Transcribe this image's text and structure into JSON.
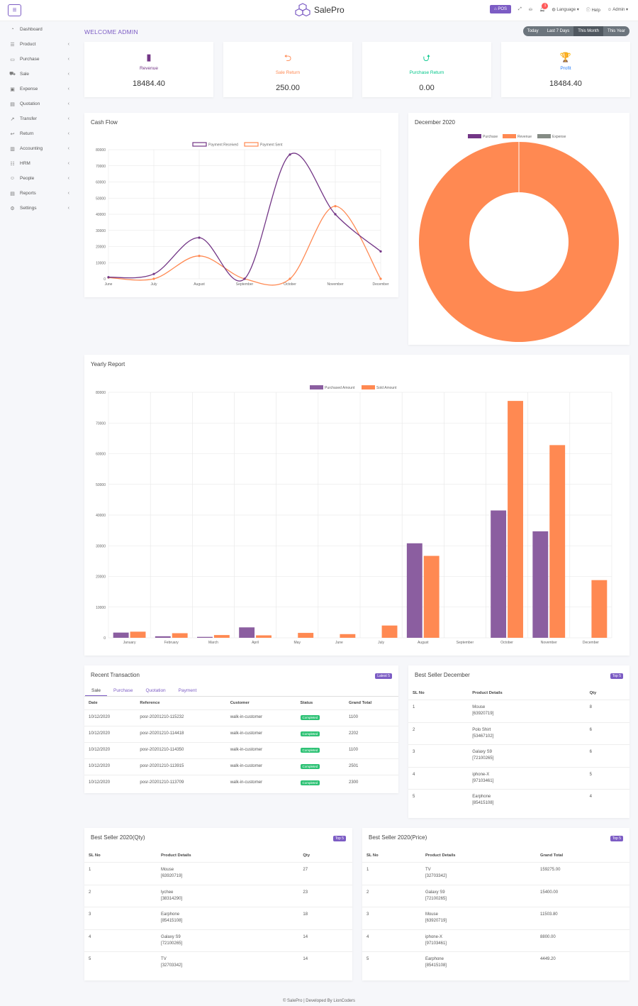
{
  "header": {
    "menu_icon": "bars-icon",
    "brand": "SalePro",
    "pos": "POS",
    "notif_count": "1",
    "language": "Language",
    "help": "Help",
    "user": "Admin"
  },
  "sidebar": {
    "items": [
      {
        "label": "Dashboard",
        "icon": "dashboard-icon",
        "glyph": "◔",
        "chev": false
      },
      {
        "label": "Product",
        "icon": "list-icon",
        "glyph": "☰",
        "chev": true
      },
      {
        "label": "Purchase",
        "icon": "card-icon",
        "glyph": "▭",
        "chev": true
      },
      {
        "label": "Sale",
        "icon": "cart-icon",
        "glyph": "⛟",
        "chev": true
      },
      {
        "label": "Expense",
        "icon": "wallet-icon",
        "glyph": "▣",
        "chev": true
      },
      {
        "label": "Quotation",
        "icon": "document-icon",
        "glyph": "▤",
        "chev": true
      },
      {
        "label": "Transfer",
        "icon": "share-icon",
        "glyph": "↗",
        "chev": true
      },
      {
        "label": "Return",
        "icon": "return-icon",
        "glyph": "↩",
        "chev": true
      },
      {
        "label": "Accounting",
        "icon": "briefcase-icon",
        "glyph": "▥",
        "chev": true
      },
      {
        "label": "HRM",
        "icon": "users-icon",
        "glyph": "☷",
        "chev": true
      },
      {
        "label": "People",
        "icon": "user-icon",
        "glyph": "☺",
        "chev": true
      },
      {
        "label": "Reports",
        "icon": "report-icon",
        "glyph": "▤",
        "chev": true
      },
      {
        "label": "Settings",
        "icon": "gear-icon",
        "glyph": "⚙",
        "chev": true
      }
    ]
  },
  "welcome": "WELCOME ADMIN",
  "filters": [
    "Today",
    "Last 7 Days",
    "This Month",
    "This Year"
  ],
  "stats": [
    {
      "label": "Revenue",
      "value": "18484.40",
      "color": "#733686",
      "icon": "bar-chart-icon",
      "glyph": "▮"
    },
    {
      "label": "Sale Return",
      "value": "250.00",
      "color": "#ff8952",
      "icon": "return-icon",
      "glyph": "⮌"
    },
    {
      "label": "Purchase Return",
      "value": "0.00",
      "color": "#00c689",
      "icon": "share-icon",
      "glyph": "⮍"
    },
    {
      "label": "Profit",
      "value": "18484.40",
      "color": "#297ff9",
      "icon": "trophy-icon",
      "glyph": "🏆"
    }
  ],
  "cashflow": {
    "title": "Cash Flow"
  },
  "monthchart": {
    "title": "December 2020"
  },
  "yearly": {
    "title": "Yearly Report"
  },
  "chart_data": [
    {
      "type": "line",
      "title": "Cash Flow",
      "x": [
        "June",
        "July",
        "August",
        "September",
        "October",
        "November",
        "December"
      ],
      "series": [
        {
          "name": "Payment Received",
          "color": "#733686",
          "values": [
            1000,
            3000,
            25500,
            0,
            77000,
            40000,
            17000
          ]
        },
        {
          "name": "Payment Sent",
          "color": "#ff8952",
          "values": [
            800,
            0,
            14200,
            0,
            0,
            45000,
            0
          ]
        }
      ],
      "ylim": [
        0,
        80000
      ],
      "yticks": [
        0,
        10000,
        20000,
        30000,
        40000,
        50000,
        60000,
        70000,
        80000
      ],
      "legend": "top",
      "grid": true
    },
    {
      "type": "pie",
      "title": "December 2020",
      "series": [
        {
          "name": "Purchase",
          "color": "#733686",
          "value": 0
        },
        {
          "name": "Revenue",
          "color": "#ff8952",
          "value": 18484.4
        },
        {
          "name": "Expense",
          "color": "#858c85",
          "value": 0
        }
      ],
      "legend": "top"
    },
    {
      "type": "bar",
      "title": "Yearly Report",
      "categories": [
        "January",
        "February",
        "March",
        "April",
        "May",
        "June",
        "July",
        "August",
        "September",
        "October",
        "November",
        "December"
      ],
      "series": [
        {
          "name": "Purchased Amount",
          "color": "#8b5ea0",
          "values": [
            1700,
            500,
            300,
            3400,
            0,
            0,
            0,
            30800,
            0,
            41500,
            34700,
            0
          ]
        },
        {
          "name": "Sold Amount",
          "color": "#ff8952",
          "values": [
            2000,
            1500,
            900,
            800,
            1600,
            1200,
            4000,
            26700,
            0,
            77200,
            62800,
            18800
          ]
        }
      ],
      "ylim": [
        0,
        80000
      ],
      "yticks": [
        0,
        10000,
        20000,
        30000,
        40000,
        50000,
        60000,
        70000,
        80000
      ],
      "legend": "top",
      "grid": true
    }
  ],
  "recent": {
    "title": "Recent Transaction",
    "tag": "Latest 5",
    "tabs": [
      "Sale",
      "Purchase",
      "Quotation",
      "Payment"
    ],
    "headers": [
      "Date",
      "Reference",
      "Customer",
      "Status",
      "Grand Total"
    ],
    "rows": [
      [
        "10/12/2020",
        "posr-20201210-115232",
        "walk-in-customer",
        "Completed",
        "1100"
      ],
      [
        "10/12/2020",
        "posr-20201210-114418",
        "walk-in-customer",
        "Completed",
        "2202"
      ],
      [
        "10/12/2020",
        "posr-20201210-114350",
        "walk-in-customer",
        "Completed",
        "1100"
      ],
      [
        "10/12/2020",
        "posr-20201210-113915",
        "walk-in-customer",
        "Completed",
        "2501"
      ],
      [
        "10/12/2020",
        "posr-20201210-113709",
        "walk-in-customer",
        "Completed",
        "2300"
      ]
    ]
  },
  "bestdec": {
    "title": "Best Seller December",
    "tag": "Top 5",
    "headers": [
      "SL No",
      "Product Details",
      "Qty"
    ],
    "rows": [
      [
        "1",
        "Mouse",
        "[63920719]",
        "8"
      ],
      [
        "2",
        "Polo Shirt",
        "[53467102]",
        "6"
      ],
      [
        "3",
        "Galaxy S9",
        "[72100265]",
        "6"
      ],
      [
        "4",
        "iphone-X",
        "[97103461]",
        "5"
      ],
      [
        "5",
        "Earphone",
        "[85415108]",
        "4"
      ]
    ]
  },
  "bestqty": {
    "title": "Best Seller 2020(Qty)",
    "tag": "Top 5",
    "headers": [
      "SL No",
      "Product Details",
      "Qty"
    ],
    "rows": [
      [
        "1",
        "Mouse",
        "[63920719]",
        "27"
      ],
      [
        "2",
        "lychee",
        "[38314290]",
        "23"
      ],
      [
        "3",
        "Earphone",
        "[85415108]",
        "18"
      ],
      [
        "4",
        "Galaxy S9",
        "[72100265]",
        "14"
      ],
      [
        "5",
        "TV",
        "[32703342]",
        "14"
      ]
    ]
  },
  "bestprice": {
    "title": "Best Seller 2020(Price)",
    "tag": "Top 5",
    "headers": [
      "SL No",
      "Product Details",
      "Grand Total"
    ],
    "rows": [
      [
        "1",
        "TV",
        "[32703342]",
        "159275.00"
      ],
      [
        "2",
        "Galaxy S9",
        "[72100265]",
        "15400.00"
      ],
      [
        "3",
        "Mouse",
        "[63920719]",
        "11503.80"
      ],
      [
        "4",
        "iphone-X",
        "[97103461]",
        "8800.00"
      ],
      [
        "5",
        "Earphone",
        "[85415108]",
        "4449.20"
      ]
    ]
  },
  "footer": "© SalePro | Developed By LionCoders"
}
